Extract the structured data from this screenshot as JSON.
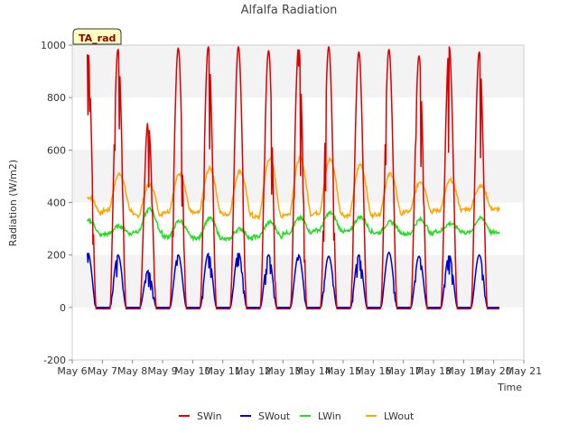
{
  "chart_data": {
    "type": "line",
    "title": "Alfalfa Radiation",
    "xlabel": "Time",
    "ylabel": "Radiation (W/m2)",
    "ylim": [
      -200,
      1000
    ],
    "yticks": [
      -200,
      0,
      200,
      400,
      600,
      800,
      1000
    ],
    "xlim": [
      6,
      21
    ],
    "x_unit": "day of May",
    "xtick_labels": [
      "May 6",
      "May 7",
      "May 8",
      "May 9",
      "May 10",
      "May 11",
      "May 12",
      "May 13",
      "May 14",
      "May 15",
      "May 16",
      "May 17",
      "May 18",
      "May 19",
      "May 20",
      "May 21"
    ],
    "badge": "TA_rad",
    "grid": "horizontal bands",
    "legend_position": "bottom",
    "series": [
      {
        "name": "SWin",
        "color": "#dd0000",
        "daily_peak": [
          975,
          985,
          710,
          990,
          995,
          995,
          980,
          995,
          995,
          975,
          985,
          960,
          995,
          975
        ],
        "night_value": -5
      },
      {
        "name": "SWout",
        "color": "#0000cc",
        "daily_peak": [
          210,
          200,
          140,
          200,
          205,
          210,
          200,
          200,
          195,
          200,
          210,
          195,
          200,
          200
        ],
        "night_value": 0
      },
      {
        "name": "LWin",
        "color": "#22dd22",
        "daily_min": [
          275,
          280,
          290,
          270,
          265,
          260,
          270,
          285,
          295,
          290,
          285,
          280,
          290,
          285
        ],
        "daily_max": [
          330,
          310,
          375,
          330,
          340,
          300,
          325,
          340,
          360,
          345,
          325,
          335,
          320,
          340
        ]
      },
      {
        "name": "LWout",
        "color": "#ffa500",
        "daily_min": [
          360,
          370,
          350,
          365,
          360,
          355,
          345,
          355,
          360,
          350,
          355,
          365,
          370,
          375
        ],
        "daily_max": [
          420,
          510,
          470,
          510,
          530,
          520,
          570,
          570,
          565,
          545,
          510,
          480,
          485,
          465
        ]
      }
    ]
  }
}
